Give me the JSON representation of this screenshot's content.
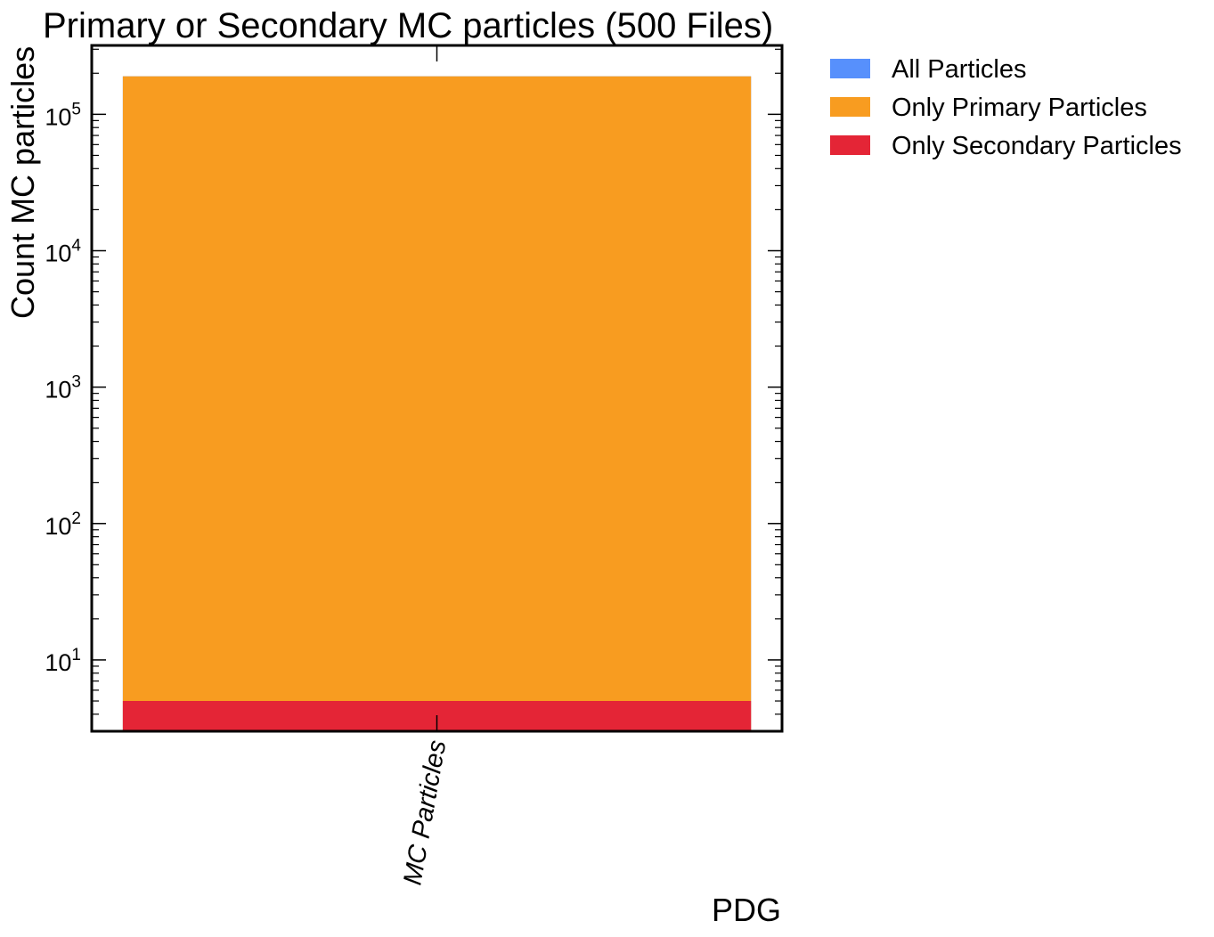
{
  "chart_data": {
    "type": "bar",
    "title": "Primary or Secondary MC particles (500 Files)",
    "xlabel": "PDG",
    "ylabel": "Count MC particles",
    "yscale": "log",
    "ylim": [
      3,
      320000
    ],
    "categories": [
      "MC Particles"
    ],
    "series": [
      {
        "name": "All Particles",
        "color": "#5790fc",
        "values": [
          190000
        ]
      },
      {
        "name": "Only Primary Particles",
        "color": "#f89c20",
        "values": [
          190000
        ]
      },
      {
        "name": "Only Secondary Particles",
        "color": "#e42536",
        "values": [
          5
        ]
      }
    ],
    "yticks": [
      {
        "base": "10",
        "exp": "1",
        "value": 10
      },
      {
        "base": "10",
        "exp": "2",
        "value": 100
      },
      {
        "base": "10",
        "exp": "3",
        "value": 1000
      },
      {
        "base": "10",
        "exp": "4",
        "value": 10000
      },
      {
        "base": "10",
        "exp": "5",
        "value": 100000
      }
    ],
    "legend_position": "outside-right-top",
    "grid": false
  }
}
